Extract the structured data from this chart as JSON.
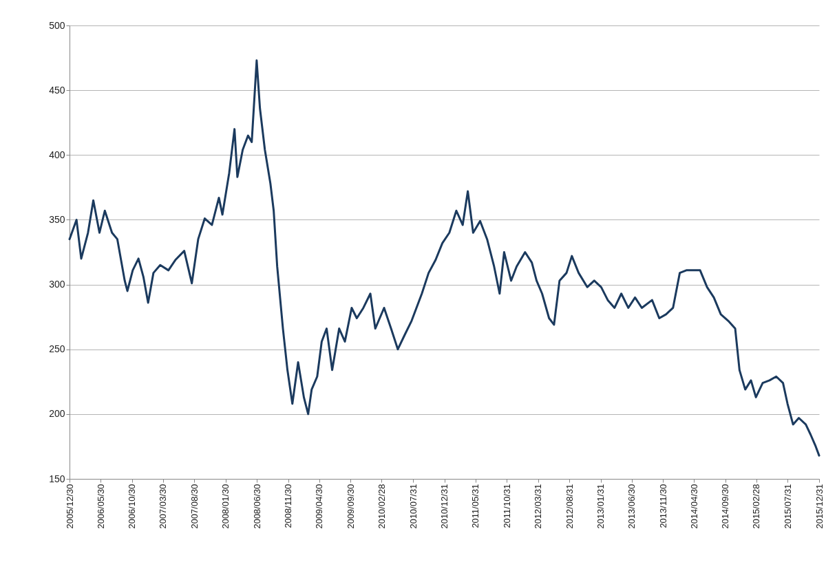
{
  "chart_data": {
    "type": "line",
    "x": [
      "2005-12-30",
      "2006-02-02",
      "2006-02-25",
      "2006-03-30",
      "2006-04-25",
      "2006-05-25",
      "2006-06-20",
      "2006-07-25",
      "2006-08-20",
      "2006-09-25",
      "2006-10-08",
      "2006-11-03",
      "2006-12-01",
      "2006-12-25",
      "2007-01-17",
      "2007-02-12",
      "2007-03-17",
      "2007-04-26",
      "2007-05-30",
      "2007-07-12",
      "2007-08-18",
      "2007-09-18",
      "2007-10-20",
      "2007-11-24",
      "2007-12-28",
      "2008-01-14",
      "2008-02-16",
      "2008-03-13",
      "2008-03-27",
      "2008-04-22",
      "2008-05-18",
      "2008-06-05",
      "2008-06-29",
      "2008-07-15",
      "2008-08-08",
      "2008-09-04",
      "2008-09-20",
      "2008-10-07",
      "2008-11-04",
      "2008-11-26",
      "2008-12-20",
      "2009-01-17",
      "2009-02-14",
      "2009-03-07",
      "2009-03-24",
      "2009-04-20",
      "2009-05-12",
      "2009-06-05",
      "2009-07-02",
      "2009-08-05",
      "2009-09-02",
      "2009-10-05",
      "2009-10-30",
      "2009-12-01",
      "2010-01-04",
      "2010-01-28",
      "2010-03-12",
      "2010-04-15",
      "2010-05-18",
      "2010-06-20",
      "2010-07-24",
      "2010-09-12",
      "2010-10-15",
      "2010-11-18",
      "2010-12-21",
      "2011-01-24",
      "2011-02-27",
      "2011-03-30",
      "2011-04-24",
      "2011-05-20",
      "2011-06-23",
      "2011-07-27",
      "2011-08-30",
      "2011-09-26",
      "2011-10-18",
      "2011-11-21",
      "2011-12-18",
      "2012-01-28",
      "2012-03-01",
      "2012-03-24",
      "2012-04-20",
      "2012-05-24",
      "2012-06-17",
      "2012-07-14",
      "2012-08-17",
      "2012-09-12",
      "2012-10-15",
      "2012-11-26",
      "2012-12-30",
      "2013-02-02",
      "2013-03-06",
      "2013-04-08",
      "2013-05-11",
      "2013-06-14",
      "2013-07-17",
      "2013-08-19",
      "2013-10-08",
      "2013-11-12",
      "2013-12-15",
      "2014-01-18",
      "2014-02-20",
      "2014-03-24",
      "2014-04-27",
      "2014-05-30",
      "2014-07-03",
      "2014-08-05",
      "2014-09-08",
      "2014-10-14",
      "2014-11-17",
      "2014-12-08",
      "2015-01-05",
      "2015-02-02",
      "2015-02-26",
      "2015-03-31",
      "2015-05-03",
      "2015-06-05",
      "2015-07-08",
      "2015-07-30",
      "2015-08-26",
      "2015-09-23",
      "2015-10-27",
      "2015-11-20",
      "2015-12-12",
      "2015-12-31"
    ],
    "series": [
      {
        "color": "#1b3a5e",
        "values": [
          335,
          350,
          320,
          340,
          365,
          340,
          357,
          340,
          335,
          303,
          295,
          311,
          320,
          306,
          286,
          309,
          315,
          311,
          319,
          326,
          301,
          335,
          351,
          346,
          367,
          354,
          386,
          420,
          383,
          404,
          415,
          410,
          473,
          436,
          404,
          378,
          357,
          314,
          266,
          234,
          208,
          240,
          213,
          200,
          219,
          229,
          256,
          266,
          234,
          266,
          256,
          282,
          274,
          282,
          293,
          266,
          282,
          266,
          250,
          261,
          272,
          293,
          309,
          319,
          332,
          340,
          357,
          346,
          372,
          340,
          349,
          335,
          314,
          293,
          325,
          303,
          314,
          325,
          317,
          303,
          293,
          274,
          269,
          303,
          309,
          322,
          309,
          298,
          303,
          298,
          288,
          282,
          293,
          282,
          290,
          282,
          288,
          274,
          277,
          282,
          309,
          311,
          311,
          311,
          298,
          290,
          277,
          272,
          266,
          234,
          219,
          226,
          213,
          224,
          226,
          229,
          224,
          208,
          192,
          197,
          192,
          184,
          176,
          168
        ]
      }
    ],
    "xlim": [
      "2005-12-30",
      "2015-12-31"
    ],
    "xticks": [
      {
        "value": "2005-12-30",
        "label": "2005/12/30"
      },
      {
        "value": "2006-05-30",
        "label": "2006/05/30"
      },
      {
        "value": "2006-10-30",
        "label": "2006/10/30"
      },
      {
        "value": "2007-03-30",
        "label": "2007/03/30"
      },
      {
        "value": "2007-08-30",
        "label": "2007/08/30"
      },
      {
        "value": "2008-01-30",
        "label": "2008/01/30"
      },
      {
        "value": "2008-06-30",
        "label": "2008/06/30"
      },
      {
        "value": "2008-11-30",
        "label": "2008/11/30"
      },
      {
        "value": "2009-04-30",
        "label": "2009/04/30"
      },
      {
        "value": "2009-09-30",
        "label": "2009/09/30"
      },
      {
        "value": "2010-02-28",
        "label": "2010/02/28"
      },
      {
        "value": "2010-07-31",
        "label": "2010/07/31"
      },
      {
        "value": "2010-12-31",
        "label": "2010/12/31"
      },
      {
        "value": "2011-05-31",
        "label": "2011/05/31"
      },
      {
        "value": "2011-10-31",
        "label": "2011/10/31"
      },
      {
        "value": "2012-03-31",
        "label": "2012/03/31"
      },
      {
        "value": "2012-08-31",
        "label": "2012/08/31"
      },
      {
        "value": "2013-01-31",
        "label": "2013/01/31"
      },
      {
        "value": "2013-06-30",
        "label": "2013/06/30"
      },
      {
        "value": "2013-11-30",
        "label": "2013/11/30"
      },
      {
        "value": "2014-04-30",
        "label": "2014/04/30"
      },
      {
        "value": "2014-09-30",
        "label": "2014/09/30"
      },
      {
        "value": "2015-02-28",
        "label": "2015/02/28"
      },
      {
        "value": "2015-07-31",
        "label": "2015/07/31"
      },
      {
        "value": "2015-12-31",
        "label": "2015/12/31"
      }
    ],
    "ylim": [
      150,
      500
    ],
    "yticks": [
      150,
      200,
      250,
      300,
      350,
      400,
      450,
      500
    ],
    "grid": "y"
  }
}
